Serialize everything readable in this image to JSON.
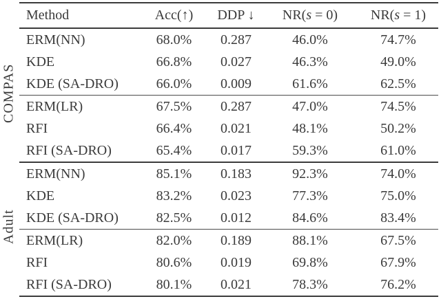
{
  "colors": {
    "background": "#ffffff",
    "text": "#3a3a3a",
    "rule": "#3a3a3a"
  },
  "header": {
    "method": "Method",
    "acc": "Acc(↑)",
    "ddp": "DDP ↓",
    "nr0": {
      "pre": "NR(",
      "var": "s",
      "post": " = 0)"
    },
    "nr1": {
      "pre": "NR(",
      "var": "s",
      "post": " = 1)"
    }
  },
  "sections": [
    {
      "label": "COMPAS",
      "groups": [
        {
          "rows": [
            {
              "method": "ERM(NN)",
              "acc": "68.0%",
              "ddp": "0.287",
              "nr0": "46.0%",
              "nr1": "74.7%"
            },
            {
              "method": "KDE",
              "acc": "66.8%",
              "ddp": "0.027",
              "nr0": "46.3%",
              "nr1": "49.0%"
            },
            {
              "method": "KDE (SA-DRO)",
              "acc": "66.0%",
              "ddp": "0.009",
              "nr0": "61.6%",
              "nr1": "62.5%"
            }
          ]
        },
        {
          "rows": [
            {
              "method": "ERM(LR)",
              "acc": "67.5%",
              "ddp": "0.287",
              "nr0": "47.0%",
              "nr1": "74.5%"
            },
            {
              "method": "RFI",
              "acc": "66.4%",
              "ddp": "0.021",
              "nr0": "48.1%",
              "nr1": "50.2%"
            },
            {
              "method": "RFI (SA-DRO)",
              "acc": "65.4%",
              "ddp": "0.017",
              "nr0": "59.3%",
              "nr1": "61.0%"
            }
          ]
        }
      ]
    },
    {
      "label": "Adult",
      "groups": [
        {
          "rows": [
            {
              "method": "ERM(NN)",
              "acc": "85.1%",
              "ddp": "0.183",
              "nr0": "92.3%",
              "nr1": "74.0%"
            },
            {
              "method": "KDE",
              "acc": "83.2%",
              "ddp": "0.023",
              "nr0": "77.3%",
              "nr1": "75.0%"
            },
            {
              "method": "KDE (SA-DRO)",
              "acc": "82.5%",
              "ddp": "0.012",
              "nr0": "84.6%",
              "nr1": "83.4%"
            }
          ]
        },
        {
          "rows": [
            {
              "method": "ERM(LR)",
              "acc": "82.0%",
              "ddp": "0.189",
              "nr0": "88.1%",
              "nr1": "67.5%"
            },
            {
              "method": "RFI",
              "acc": "80.6%",
              "ddp": "0.019",
              "nr0": "69.8%",
              "nr1": "67.9%"
            },
            {
              "method": "RFI (SA-DRO)",
              "acc": "80.1%",
              "ddp": "0.021",
              "nr0": "78.3%",
              "nr1": "76.2%"
            }
          ]
        }
      ]
    }
  ],
  "chart_data": {
    "type": "table",
    "columns": [
      "Method",
      "Acc(↑)",
      "DDP ↓",
      "NR(s = 0)",
      "NR(s = 1)"
    ],
    "row_groups": [
      {
        "dataset": "COMPAS",
        "rows": [
          [
            "ERM(NN)",
            "68.0%",
            "0.287",
            "46.0%",
            "74.7%"
          ],
          [
            "KDE",
            "66.8%",
            "0.027",
            "46.3%",
            "49.0%"
          ],
          [
            "KDE (SA-DRO)",
            "66.0%",
            "0.009",
            "61.6%",
            "62.5%"
          ],
          [
            "ERM(LR)",
            "67.5%",
            "0.287",
            "47.0%",
            "74.5%"
          ],
          [
            "RFI",
            "66.4%",
            "0.021",
            "48.1%",
            "50.2%"
          ],
          [
            "RFI (SA-DRO)",
            "65.4%",
            "0.017",
            "59.3%",
            "61.0%"
          ]
        ]
      },
      {
        "dataset": "Adult",
        "rows": [
          [
            "ERM(NN)",
            "85.1%",
            "0.183",
            "92.3%",
            "74.0%"
          ],
          [
            "KDE",
            "83.2%",
            "0.023",
            "77.3%",
            "75.0%"
          ],
          [
            "KDE (SA-DRO)",
            "82.5%",
            "0.012",
            "84.6%",
            "83.4%"
          ],
          [
            "ERM(LR)",
            "82.0%",
            "0.189",
            "88.1%",
            "67.5%"
          ],
          [
            "RFI",
            "80.6%",
            "0.019",
            "69.8%",
            "67.9%"
          ],
          [
            "RFI (SA-DRO)",
            "80.1%",
            "0.021",
            "78.3%",
            "76.2%"
          ]
        ]
      }
    ]
  }
}
